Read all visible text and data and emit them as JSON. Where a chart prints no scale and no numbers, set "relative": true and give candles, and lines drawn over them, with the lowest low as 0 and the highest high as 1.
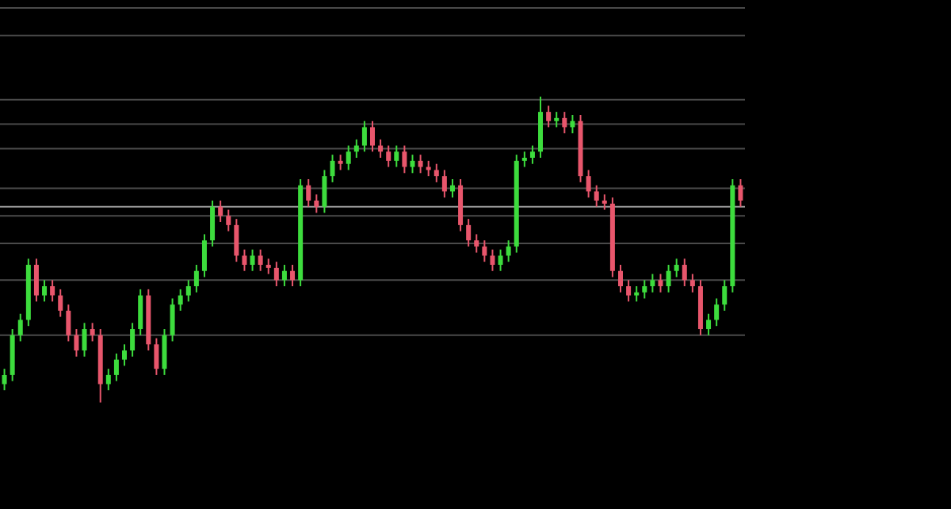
{
  "chart_data": {
    "type": "candlestick",
    "relative": true,
    "categories": [
      null,
      null,
      null,
      null,
      null,
      null,
      null,
      null,
      null,
      null,
      null,
      null,
      null,
      null,
      null,
      null,
      null,
      null,
      null,
      null,
      null,
      null,
      null,
      null,
      null,
      null,
      null,
      null,
      null,
      null,
      null,
      null,
      null,
      null,
      null,
      null,
      null,
      null,
      null,
      null,
      null,
      null,
      null,
      null,
      null,
      null,
      null,
      null,
      null,
      null,
      null,
      null,
      null,
      null,
      null,
      null,
      null,
      null,
      null,
      null,
      null,
      null,
      null,
      null,
      null,
      null,
      null,
      null,
      null,
      null,
      null,
      null,
      null,
      null,
      null,
      null,
      null,
      null,
      null,
      null,
      null,
      null,
      null,
      null,
      null,
      null,
      null,
      null,
      null,
      null,
      null,
      null,
      null
    ],
    "ohlc": [
      [
        0.06,
        0.11,
        0.04,
        0.09
      ],
      [
        0.09,
        0.24,
        0.07,
        0.22
      ],
      [
        0.22,
        0.29,
        0.2,
        0.27
      ],
      [
        0.27,
        0.47,
        0.25,
        0.45
      ],
      [
        0.45,
        0.47,
        0.33,
        0.35
      ],
      [
        0.35,
        0.4,
        0.33,
        0.38
      ],
      [
        0.38,
        0.4,
        0.33,
        0.35
      ],
      [
        0.35,
        0.37,
        0.28,
        0.3
      ],
      [
        0.3,
        0.32,
        0.2,
        0.22
      ],
      [
        0.22,
        0.24,
        0.15,
        0.17
      ],
      [
        0.17,
        0.26,
        0.15,
        0.24
      ],
      [
        0.24,
        0.26,
        0.2,
        0.22
      ],
      [
        0.22,
        0.24,
        0,
        0.06
      ],
      [
        0.06,
        0.11,
        0.04,
        0.09
      ],
      [
        0.09,
        0.16,
        0.07,
        0.14
      ],
      [
        0.14,
        0.19,
        0.12,
        0.17
      ],
      [
        0.17,
        0.26,
        0.15,
        0.24
      ],
      [
        0.24,
        0.37,
        0.22,
        0.35
      ],
      [
        0.35,
        0.37,
        0.17,
        0.19
      ],
      [
        0.19,
        0.21,
        0.09,
        0.11
      ],
      [
        0.11,
        0.24,
        0.09,
        0.22
      ],
      [
        0.22,
        0.34,
        0.2,
        0.32
      ],
      [
        0.32,
        0.37,
        0.3,
        0.35
      ],
      [
        0.35,
        0.4,
        0.33,
        0.38
      ],
      [
        0.38,
        0.45,
        0.36,
        0.43
      ],
      [
        0.43,
        0.55,
        0.41,
        0.53
      ],
      [
        0.53,
        0.66,
        0.51,
        0.64
      ],
      [
        0.64,
        0.66,
        0.59,
        0.61
      ],
      [
        0.61,
        0.63,
        0.56,
        0.58
      ],
      [
        0.58,
        0.6,
        0.46,
        0.48
      ],
      [
        0.48,
        0.5,
        0.43,
        0.45
      ],
      [
        0.45,
        0.5,
        0.43,
        0.48
      ],
      [
        0.48,
        0.5,
        0.43,
        0.45
      ],
      [
        0.45,
        0.47,
        0.42,
        0.44
      ],
      [
        0.44,
        0.46,
        0.38,
        0.4
      ],
      [
        0.4,
        0.45,
        0.38,
        0.43
      ],
      [
        0.43,
        0.45,
        0.38,
        0.4
      ],
      [
        0.4,
        0.73,
        0.38,
        0.71
      ],
      [
        0.71,
        0.73,
        0.64,
        0.66
      ],
      [
        0.66,
        0.68,
        0.62,
        0.64
      ],
      [
        0.64,
        0.76,
        0.62,
        0.74
      ],
      [
        0.74,
        0.81,
        0.72,
        0.79
      ],
      [
        0.79,
        0.81,
        0.76,
        0.78
      ],
      [
        0.78,
        0.84,
        0.76,
        0.82
      ],
      [
        0.82,
        0.86,
        0.8,
        0.84
      ],
      [
        0.84,
        0.92,
        0.82,
        0.9
      ],
      [
        0.9,
        0.92,
        0.82,
        0.84
      ],
      [
        0.84,
        0.86,
        0.8,
        0.82
      ],
      [
        0.82,
        0.84,
        0.77,
        0.79
      ],
      [
        0.79,
        0.84,
        0.77,
        0.82
      ],
      [
        0.82,
        0.84,
        0.75,
        0.77
      ],
      [
        0.77,
        0.81,
        0.75,
        0.79
      ],
      [
        0.79,
        0.81,
        0.75,
        0.77
      ],
      [
        0.77,
        0.79,
        0.74,
        0.76
      ],
      [
        0.76,
        0.78,
        0.72,
        0.74
      ],
      [
        0.74,
        0.76,
        0.67,
        0.69
      ],
      [
        0.69,
        0.73,
        0.67,
        0.71
      ],
      [
        0.71,
        0.73,
        0.56,
        0.58
      ],
      [
        0.58,
        0.6,
        0.51,
        0.53
      ],
      [
        0.53,
        0.55,
        0.49,
        0.51
      ],
      [
        0.51,
        0.53,
        0.46,
        0.48
      ],
      [
        0.48,
        0.5,
        0.43,
        0.45
      ],
      [
        0.45,
        0.5,
        0.43,
        0.48
      ],
      [
        0.48,
        0.53,
        0.46,
        0.51
      ],
      [
        0.51,
        0.81,
        0.49,
        0.79
      ],
      [
        0.79,
        0.82,
        0.77,
        0.8
      ],
      [
        0.8,
        0.84,
        0.78,
        0.82
      ],
      [
        0.82,
        1,
        0.8,
        0.95
      ],
      [
        0.95,
        0.97,
        0.9,
        0.92
      ],
      [
        0.92,
        0.95,
        0.9,
        0.93
      ],
      [
        0.93,
        0.95,
        0.88,
        0.9
      ],
      [
        0.9,
        0.94,
        0.88,
        0.92
      ],
      [
        0.92,
        0.94,
        0.72,
        0.74
      ],
      [
        0.74,
        0.76,
        0.67,
        0.69
      ],
      [
        0.69,
        0.71,
        0.64,
        0.66
      ],
      [
        0.66,
        0.68,
        0.63,
        0.65
      ],
      [
        0.65,
        0.67,
        0.41,
        0.43
      ],
      [
        0.43,
        0.45,
        0.36,
        0.38
      ],
      [
        0.38,
        0.4,
        0.33,
        0.35
      ],
      [
        0.35,
        0.38,
        0.33,
        0.36
      ],
      [
        0.36,
        0.4,
        0.34,
        0.38
      ],
      [
        0.38,
        0.42,
        0.36,
        0.4
      ],
      [
        0.4,
        0.42,
        0.36,
        0.38
      ],
      [
        0.38,
        0.45,
        0.36,
        0.43
      ],
      [
        0.43,
        0.47,
        0.41,
        0.45
      ],
      [
        0.45,
        0.47,
        0.38,
        0.4
      ],
      [
        0.4,
        0.42,
        0.36,
        0.38
      ],
      [
        0.38,
        0.4,
        0.22,
        0.24
      ],
      [
        0.24,
        0.29,
        0.22,
        0.27
      ],
      [
        0.27,
        0.34,
        0.25,
        0.32
      ],
      [
        0.32,
        0.4,
        0.3,
        0.38
      ],
      [
        0.38,
        0.73,
        0.36,
        0.71
      ],
      [
        0.71,
        0.73,
        0.64,
        0.66
      ]
    ],
    "colors": [
      "#3ddc3d",
      "#3ddc3d",
      "#3ddc3d",
      "#3ddc3d",
      "#e8566c",
      "#3ddc3d",
      "#e8566c",
      "#e8566c",
      "#e8566c",
      "#e8566c",
      "#3ddc3d",
      "#e8566c",
      "#e8566c",
      "#3ddc3d",
      "#3ddc3d",
      "#3ddc3d",
      "#3ddc3d",
      "#3ddc3d",
      "#e8566c",
      "#e8566c",
      "#3ddc3d",
      "#3ddc3d",
      "#3ddc3d",
      "#3ddc3d",
      "#3ddc3d",
      "#3ddc3d",
      "#3ddc3d",
      "#e8566c",
      "#e8566c",
      "#e8566c",
      "#e8566c",
      "#3ddc3d",
      "#e8566c",
      "#e8566c",
      "#e8566c",
      "#3ddc3d",
      "#e8566c",
      "#3ddc3d",
      "#e8566c",
      "#e8566c",
      "#3ddc3d",
      "#3ddc3d",
      "#e8566c",
      "#3ddc3d",
      "#3ddc3d",
      "#3ddc3d",
      "#e8566c",
      "#e8566c",
      "#e8566c",
      "#3ddc3d",
      "#e8566c",
      "#3ddc3d",
      "#e8566c",
      "#e8566c",
      "#e8566c",
      "#e8566c",
      "#3ddc3d",
      "#e8566c",
      "#e8566c",
      "#e8566c",
      "#e8566c",
      "#e8566c",
      "#3ddc3d",
      "#3ddc3d",
      "#3ddc3d",
      "#3ddc3d",
      "#3ddc3d",
      "#3ddc3d",
      "#e8566c",
      "#3ddc3d",
      "#e8566c",
      "#3ddc3d",
      "#e8566c",
      "#e8566c",
      "#e8566c",
      "#e8566c",
      "#e8566c",
      "#e8566c",
      "#e8566c",
      "#3ddc3d",
      "#3ddc3d",
      "#3ddc3d",
      "#e8566c",
      "#3ddc3d",
      "#3ddc3d",
      "#e8566c",
      "#e8566c",
      "#e8566c",
      "#3ddc3d",
      "#3ddc3d",
      "#3ddc3d",
      "#3ddc3d",
      "#e8566c"
    ],
    "ref_lines": [
      {
        "axis": "y",
        "value": 1.29,
        "color": "#4a4a4a"
      },
      {
        "axis": "y",
        "value": 1.2,
        "color": "#4a4a4a"
      },
      {
        "axis": "y",
        "value": 0.99,
        "color": "#4a4a4a"
      },
      {
        "axis": "y",
        "value": 0.91,
        "color": "#4a4a4a"
      },
      {
        "axis": "y",
        "value": 0.83,
        "color": "#4a4a4a"
      },
      {
        "axis": "y",
        "value": 0.7,
        "color": "#4a4a4a"
      },
      {
        "axis": "y",
        "value": 0.64,
        "color": "#9a9a9a"
      },
      {
        "axis": "y",
        "value": 0.61,
        "color": "#4a4a4a"
      },
      {
        "axis": "y",
        "value": 0.52,
        "color": "#4a4a4a"
      },
      {
        "axis": "y",
        "value": 0.4,
        "color": "#4a4a4a"
      },
      {
        "axis": "y",
        "value": 0.22,
        "color": "#4a4a4a"
      }
    ]
  }
}
